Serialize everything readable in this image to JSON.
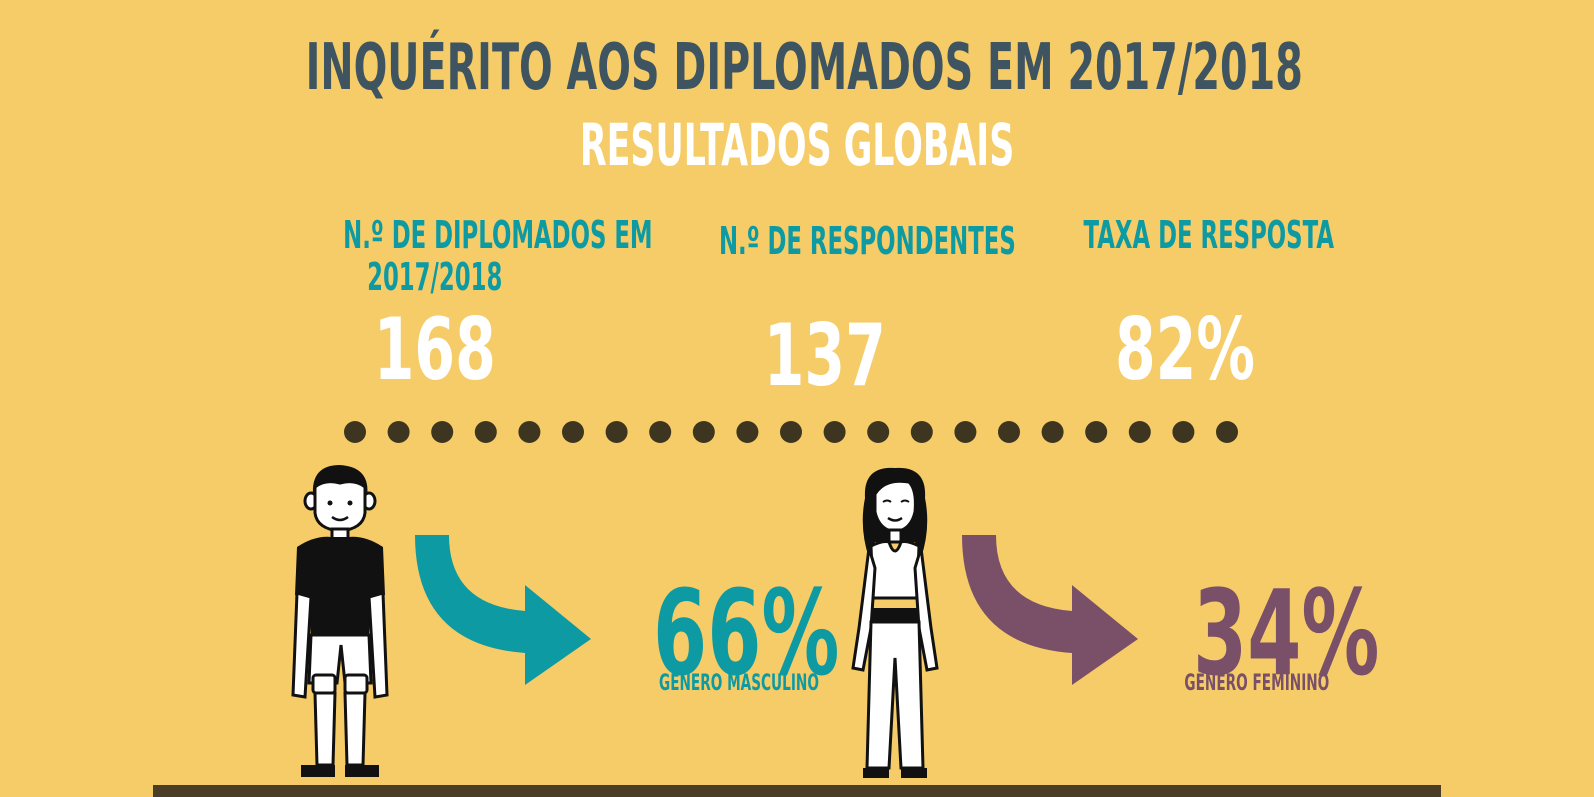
{
  "header": {
    "title": "INQUÉRITO AOS DIPLOMADOS EM 2017/2018",
    "subtitle": "RESULTADOS GLOBAIS"
  },
  "stats": [
    {
      "label_line1": "N.º DE DIPLOMADOS EM",
      "label_line2": "2017/2018",
      "value": "168"
    },
    {
      "label_line1": "N.º DE RESPONDENTES",
      "label_line2": "",
      "value": "137"
    },
    {
      "label_line1": "TAXA DE RESPOSTA",
      "label_line2": "",
      "value": "82%"
    }
  ],
  "gender": {
    "male": {
      "percent": "66%",
      "label": "GÉNERO MASCULINO",
      "icon": "male-person-icon",
      "color": "#0d9aa3"
    },
    "female": {
      "percent": "34%",
      "label": "GÉNERO FEMININO",
      "icon": "female-person-icon",
      "color": "#7a5068"
    }
  },
  "colors": {
    "background": "#f5cc68",
    "title": "#3e5561",
    "accent_teal": "#0d9aa3",
    "accent_purple": "#7a5068",
    "dots": "#3d3520"
  },
  "decor": {
    "separator_dot_count": 21
  }
}
